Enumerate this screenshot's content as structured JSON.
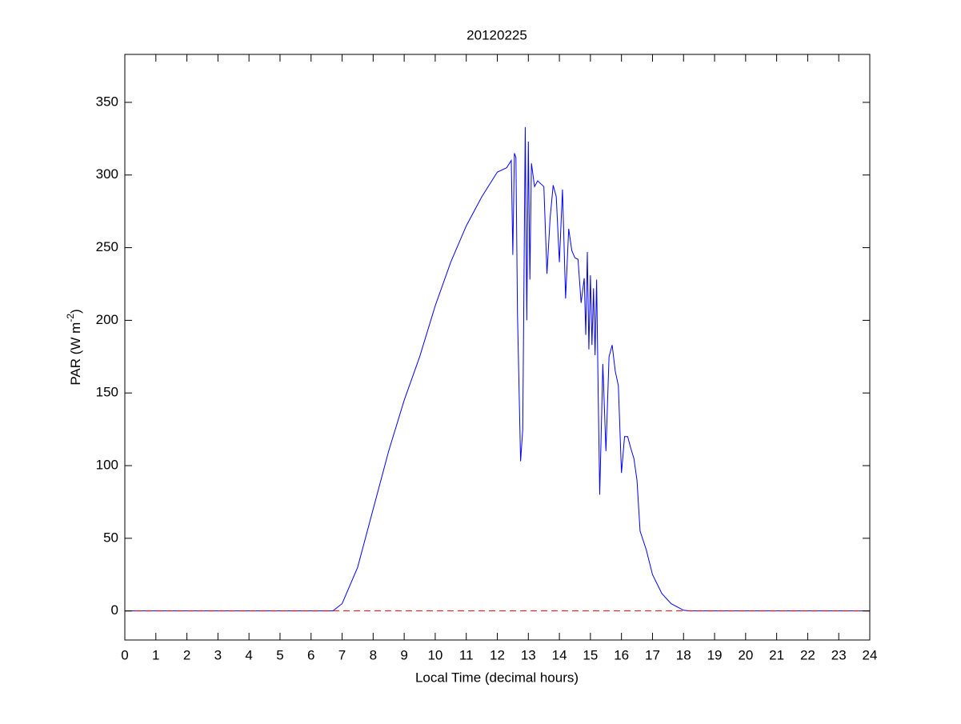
{
  "chart_data": {
    "type": "line",
    "title": "20120225",
    "x_label": "Local Time (decimal hours)",
    "y_label": {
      "text": "PAR (W m",
      "superscript": "-2",
      "suffix": ")"
    },
    "xlim": [
      0,
      24
    ],
    "xticks": [
      0,
      1,
      2,
      3,
      4,
      5,
      6,
      7,
      8,
      9,
      10,
      11,
      12,
      13,
      14,
      15,
      16,
      17,
      18,
      19,
      20,
      21,
      22,
      23,
      24
    ],
    "ylim": [
      -20,
      383
    ],
    "yticks": [
      0,
      50,
      100,
      150,
      200,
      250,
      300,
      350
    ],
    "grid": false,
    "series": [
      {
        "color": "#0000ff",
        "dash": false,
        "x": [
          0,
          6.7,
          7.0,
          7.5,
          8,
          8.5,
          9,
          9.5,
          10,
          10.5,
          11,
          11.5,
          12,
          12.3,
          12.45,
          12.5,
          12.55,
          12.6,
          12.65,
          12.75,
          12.82,
          12.9,
          12.95,
          13.0,
          13.05,
          13.1,
          13.2,
          13.3,
          13.5,
          13.6,
          13.7,
          13.8,
          13.9,
          14.0,
          14.1,
          14.2,
          14.3,
          14.4,
          14.5,
          14.6,
          14.7,
          14.8,
          14.85,
          14.9,
          14.95,
          15.0,
          15.05,
          15.1,
          15.15,
          15.2,
          15.25,
          15.3,
          15.4,
          15.5,
          15.6,
          15.7,
          15.8,
          15.9,
          16.0,
          16.1,
          16.2,
          16.3,
          16.4,
          16.5,
          16.6,
          16.8,
          17,
          17.3,
          17.6,
          18.0,
          18.2,
          24
        ],
        "values": [
          0,
          0,
          5,
          30,
          70,
          110,
          145,
          175,
          210,
          240,
          265,
          285,
          302,
          305,
          310,
          245,
          315,
          312,
          205,
          103,
          125,
          333,
          200,
          323,
          228,
          308,
          292,
          296,
          292,
          232,
          270,
          293,
          285,
          240,
          290,
          215,
          263,
          248,
          243,
          242,
          212,
          229,
          190,
          247,
          180,
          231,
          183,
          222,
          176,
          228,
          150,
          80,
          170,
          110,
          175,
          183,
          165,
          155,
          95,
          120,
          120,
          112,
          105,
          90,
          55,
          42,
          25,
          12,
          5,
          0.5,
          0,
          0
        ]
      },
      {
        "color": "#ff0000",
        "dash": true,
        "x": [
          0,
          24
        ],
        "values": [
          0,
          0
        ]
      }
    ]
  }
}
